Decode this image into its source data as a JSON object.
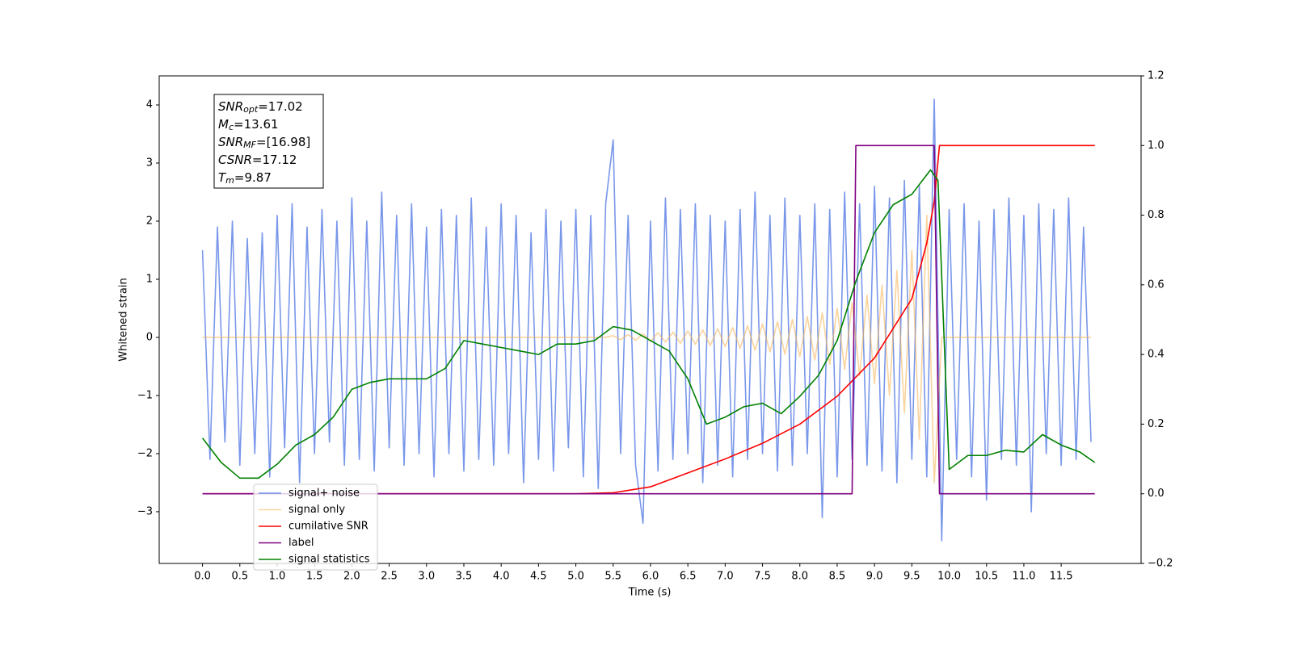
{
  "chart_data": {
    "type": "line",
    "xlabel": "Time (s)",
    "ylabel": "Whitened strain",
    "xlim": [
      -0.58,
      12.57
    ],
    "ylim": [
      -3.89,
      4.5
    ],
    "y2lim": [
      -0.2,
      1.2
    ],
    "xticks": [
      {
        "value": 0,
        "label": "0.0"
      },
      0.5,
      {
        "value": 1,
        "label": "1.0"
      },
      1.5,
      {
        "value": 2,
        "label": "2.0"
      },
      2.5,
      {
        "value": 3,
        "label": "3.0"
      },
      3.5,
      {
        "value": 4,
        "label": "4.0"
      },
      4.5,
      {
        "value": 5,
        "label": "5.0"
      },
      5.5,
      {
        "value": 6,
        "label": "6.0"
      },
      6.5,
      {
        "value": 7,
        "label": "7.0"
      },
      7.5,
      {
        "value": 8,
        "label": "8.0"
      },
      8.5,
      {
        "value": 9,
        "label": "9.0"
      },
      9.5,
      {
        "value": 10,
        "label": "10.0"
      },
      10.5,
      {
        "value": 11,
        "label": "11.0"
      },
      11.5
    ],
    "yticks": [
      {
        "value": -3,
        "label": "−3"
      },
      {
        "value": -2,
        "label": "−2"
      },
      {
        "value": -1,
        "label": "−1"
      },
      0,
      1,
      2,
      3,
      4
    ],
    "y2ticks": [
      {
        "value": -0.2,
        "label": "−0.2"
      },
      {
        "value": 0,
        "label": "0.0"
      },
      0.2,
      0.4,
      0.6,
      0.8,
      {
        "value": 1,
        "label": "1.0"
      },
      1.2
    ],
    "annotation": [
      {
        "text": "SNR",
        "sub": "opt",
        "value": "=17.02"
      },
      {
        "text": "M",
        "sub": "c",
        "value": "=13.61"
      },
      {
        "text": "SNR",
        "sub": "MF",
        "value": "=[16.98]"
      },
      {
        "text": "CSNR",
        "value": "=17.12"
      },
      {
        "text": "T",
        "sub": "m",
        "value": "=9.87"
      }
    ],
    "x": [
      0.0,
      0.1,
      0.2,
      0.3,
      0.4,
      0.5,
      0.6,
      0.7,
      0.8,
      0.9,
      1.0,
      1.1,
      1.2,
      1.3,
      1.4,
      1.5,
      1.6,
      1.7,
      1.8,
      1.9,
      2.0,
      2.1,
      2.2,
      2.3,
      2.4,
      2.5,
      2.6,
      2.7,
      2.8,
      2.9,
      3.0,
      3.1,
      3.2,
      3.3,
      3.4,
      3.5,
      3.6,
      3.7,
      3.8,
      3.9,
      4.0,
      4.1,
      4.2,
      4.3,
      4.4,
      4.5,
      4.6,
      4.7,
      4.8,
      4.9,
      5.0,
      5.1,
      5.2,
      5.3,
      5.4,
      5.5,
      5.6,
      5.7,
      5.8,
      5.9,
      6.0,
      6.1,
      6.2,
      6.3,
      6.4,
      6.5,
      6.6,
      6.7,
      6.8,
      6.9,
      7.0,
      7.1,
      7.2,
      7.3,
      7.4,
      7.5,
      7.6,
      7.7,
      7.8,
      7.9,
      8.0,
      8.1,
      8.2,
      8.3,
      8.4,
      8.5,
      8.6,
      8.7,
      8.8,
      8.9,
      9.0,
      9.1,
      9.2,
      9.3,
      9.4,
      9.5,
      9.6,
      9.7,
      9.8,
      9.9,
      10.0,
      10.1,
      10.2,
      10.3,
      10.4,
      10.5,
      10.6,
      10.7,
      10.8,
      10.9,
      11.0,
      11.1,
      11.2,
      11.3,
      11.4,
      11.5,
      11.6,
      11.7,
      11.8,
      11.9
    ],
    "series": [
      {
        "name": "signal+ noise",
        "color": "#6a8ce8",
        "values": [
          1.5,
          -2.1,
          1.9,
          -1.8,
          2.0,
          -2.2,
          1.7,
          -2.0,
          1.8,
          -2.4,
          2.1,
          -1.9,
          2.3,
          -2.5,
          1.9,
          -2.0,
          2.2,
          -1.8,
          2.0,
          -2.2,
          2.4,
          -2.1,
          2.0,
          -2.3,
          2.5,
          -1.9,
          2.1,
          -2.2,
          2.3,
          -2.0,
          1.9,
          -2.4,
          2.2,
          -2.0,
          2.1,
          -2.3,
          2.4,
          -2.1,
          1.9,
          -2.2,
          2.3,
          -2.0,
          2.1,
          -2.5,
          1.8,
          -2.1,
          2.2,
          -2.3,
          2.0,
          -1.9,
          2.2,
          -2.4,
          2.1,
          -2.6,
          2.3,
          3.4,
          -2.0,
          2.1,
          -2.2,
          -3.2,
          2.0,
          -2.3,
          2.4,
          -2.1,
          2.2,
          -2.0,
          2.3,
          -2.5,
          2.1,
          -2.2,
          2.0,
          -2.4,
          2.2,
          -2.1,
          2.5,
          -2.0,
          2.1,
          -2.3,
          2.4,
          -2.2,
          2.1,
          -2.0,
          2.3,
          -3.1,
          2.2,
          -2.4,
          2.5,
          -2.1,
          2.3,
          -2.2,
          2.6,
          -2.3,
          2.4,
          -2.5,
          2.7,
          -2.1,
          2.6,
          -2.4,
          4.1,
          -3.5,
          2.2,
          -2.1,
          2.3,
          -2.4,
          2.0,
          -2.8,
          2.2,
          -2.1,
          2.4,
          -2.2,
          2.1,
          -3.0,
          2.3,
          -2.0,
          2.2,
          -2.2,
          2.4,
          -2.1,
          1.9,
          -1.8
        ]
      },
      {
        "name": "signal only",
        "color": "#f5b04f",
        "values": [
          0,
          0,
          0,
          0,
          0,
          0,
          0,
          0,
          0,
          0,
          0,
          0,
          0,
          0,
          0,
          0,
          0,
          0,
          0,
          0,
          0,
          0,
          0,
          0,
          0,
          0,
          0,
          0,
          0,
          0,
          0,
          0,
          0,
          0,
          0,
          0,
          0,
          0,
          0,
          0,
          0,
          0,
          0,
          0,
          0,
          0,
          0,
          0,
          0,
          0,
          0,
          0,
          0,
          0,
          0,
          0.03,
          -0.04,
          0.05,
          -0.05,
          0.06,
          -0.07,
          0.08,
          -0.08,
          0.09,
          -0.1,
          0.11,
          -0.12,
          0.13,
          -0.14,
          0.15,
          -0.16,
          0.17,
          -0.19,
          0.2,
          -0.22,
          0.23,
          -0.25,
          0.27,
          -0.29,
          0.31,
          -0.33,
          0.36,
          -0.39,
          0.42,
          -0.46,
          0.5,
          -0.55,
          0.6,
          -0.66,
          0.73,
          -0.8,
          0.9,
          -1.0,
          1.15,
          -1.3,
          1.5,
          -1.75,
          2.1,
          -2.5,
          0,
          0,
          0,
          0,
          0,
          0,
          0,
          0,
          0,
          0,
          0,
          0,
          0,
          0,
          0,
          0,
          0,
          0,
          0,
          0,
          0
        ]
      },
      {
        "name": "cumilative SNR",
        "color": "#ff0000",
        "axis": "y2",
        "x": [
          0,
          5.0,
          5.5,
          6.0,
          6.5,
          7.0,
          7.5,
          8.0,
          8.5,
          9.0,
          9.5,
          9.7,
          9.8,
          9.87,
          11.95
        ],
        "values": [
          0,
          0,
          0.003,
          0.02,
          0.06,
          0.1,
          0.145,
          0.2,
          0.28,
          0.39,
          0.56,
          0.72,
          0.84,
          1.0,
          1.0
        ]
      },
      {
        "name": "label",
        "color": "#800080",
        "axis": "y2",
        "x": [
          0,
          8.7,
          8.75,
          9.8,
          9.87,
          11.95
        ],
        "values": [
          0,
          0,
          1,
          1,
          0,
          0
        ]
      },
      {
        "name": "signal statistics",
        "color": "#008000",
        "axis": "y2",
        "x": [
          0,
          0.25,
          0.5,
          0.75,
          1.0,
          1.25,
          1.5,
          1.75,
          2.0,
          2.25,
          2.5,
          2.75,
          3.0,
          3.25,
          3.5,
          3.75,
          4.0,
          4.25,
          4.5,
          4.75,
          5.0,
          5.25,
          5.5,
          5.75,
          6.0,
          6.25,
          6.5,
          6.75,
          7.0,
          7.25,
          7.5,
          7.75,
          8.0,
          8.25,
          8.5,
          8.75,
          9.0,
          9.25,
          9.5,
          9.75,
          9.85,
          10.0,
          10.25,
          10.5,
          10.75,
          11.0,
          11.25,
          11.5,
          11.75,
          11.95
        ],
        "values": [
          0.16,
          0.09,
          0.045,
          0.045,
          0.085,
          0.14,
          0.17,
          0.22,
          0.3,
          0.32,
          0.33,
          0.33,
          0.33,
          0.36,
          0.44,
          0.43,
          0.42,
          0.41,
          0.4,
          0.43,
          0.43,
          0.44,
          0.48,
          0.47,
          0.44,
          0.41,
          0.33,
          0.2,
          0.22,
          0.25,
          0.26,
          0.23,
          0.28,
          0.34,
          0.44,
          0.61,
          0.75,
          0.83,
          0.86,
          0.93,
          0.9,
          0.07,
          0.11,
          0.11,
          0.125,
          0.12,
          0.17,
          0.14,
          0.12,
          0.09
        ]
      }
    ],
    "legend": "lower left"
  }
}
